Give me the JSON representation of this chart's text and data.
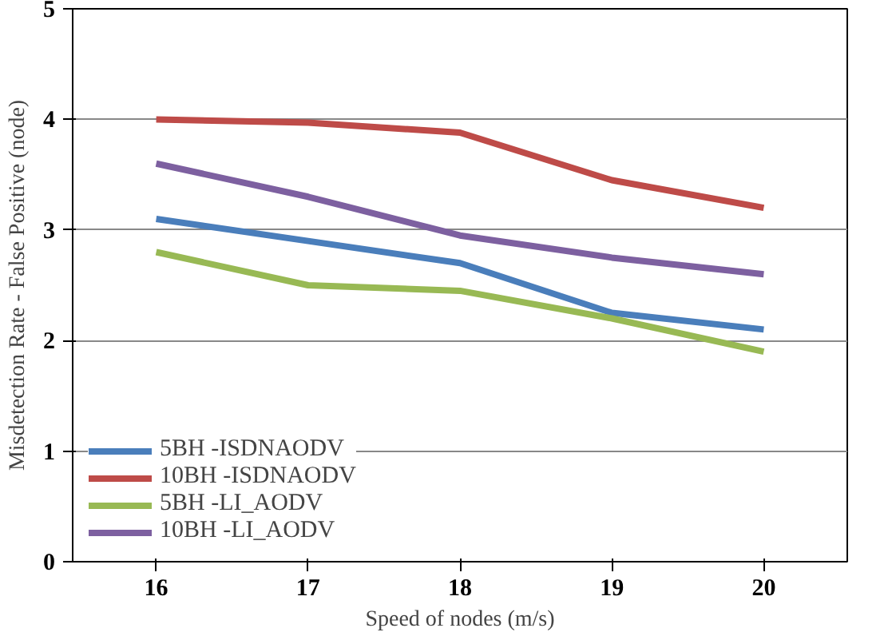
{
  "chart_data": {
    "type": "line",
    "xlabel": "Speed of nodes (m/s)",
    "ylabel": "Misdetection Rate - False Positive (node)",
    "categories": [
      "16",
      "17",
      "18",
      "19",
      "20"
    ],
    "series": [
      {
        "name": "5BH -ISDNAODV",
        "color": "#4a7ebb",
        "values": [
          3.1,
          2.9,
          2.7,
          2.25,
          2.1
        ]
      },
      {
        "name": "10BH -ISDNAODV",
        "color": "#be4b48",
        "values": [
          4.0,
          3.97,
          3.88,
          3.45,
          3.2
        ]
      },
      {
        "name": "5BH -LI_AODV",
        "color": "#98b954",
        "values": [
          2.8,
          2.5,
          2.45,
          2.2,
          1.9
        ]
      },
      {
        "name": "10BH -LI_AODV",
        "color": "#7d60a0",
        "values": [
          3.6,
          3.3,
          2.95,
          2.75,
          2.6
        ]
      }
    ],
    "ylim": [
      0,
      5
    ],
    "yticks": [
      0,
      1,
      2,
      3,
      4,
      5
    ],
    "grid": "y",
    "legend": "bottom left",
    "line_style": "solid",
    "marker": "none"
  }
}
